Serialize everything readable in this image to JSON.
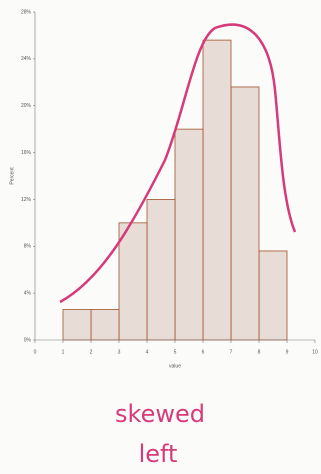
{
  "chart_data": {
    "type": "histogram",
    "bins": [
      1,
      2,
      3,
      4,
      5,
      6,
      7,
      8,
      9
    ],
    "values": [
      2.6,
      2.6,
      10,
      12,
      18,
      25.6,
      21.6,
      7.6
    ],
    "color": "#e8ddd6",
    "edge_color": "#a0522d",
    "xlim": [
      0,
      10
    ],
    "xticks": [
      0,
      1,
      2,
      3,
      4,
      5,
      6,
      7,
      8,
      9,
      10
    ],
    "ylim": [
      0,
      28
    ],
    "yticks": [
      {
        "value": 0,
        "label": "0%"
      },
      {
        "value": 4,
        "label": "4%"
      },
      {
        "value": 8,
        "label": "8%"
      },
      {
        "value": 12,
        "label": "12%"
      },
      {
        "value": 16,
        "label": "16%"
      },
      {
        "value": 20,
        "label": "20%"
      },
      {
        "value": 24,
        "label": "24%"
      },
      {
        "value": 28,
        "label": "28%"
      }
    ],
    "xlabel": "value",
    "ylabel": "Percent",
    "annotations": [
      "skewed",
      "left"
    ]
  }
}
